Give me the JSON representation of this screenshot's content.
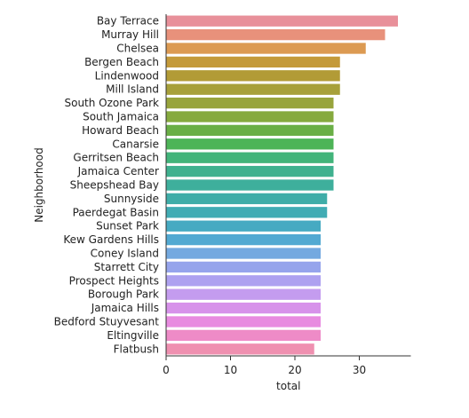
{
  "chart_data": {
    "type": "bar",
    "orientation": "horizontal",
    "xlabel": "total",
    "ylabel": "Neighborhood",
    "xlim": [
      0,
      38
    ],
    "xticks": [
      0,
      10,
      20,
      30
    ],
    "grid": false,
    "legend": "none",
    "categories": [
      "Bay Terrace",
      "Murray Hill",
      "Chelsea",
      "Bergen Beach",
      "Lindenwood",
      "Mill Island",
      "South Ozone Park",
      "South Jamaica",
      "Howard Beach",
      "Canarsie",
      "Gerritsen Beach",
      "Jamaica Center",
      "Sheepshead Bay",
      "Sunnyside",
      "Paerdegat Basin",
      "Sunset Park",
      "Kew Gardens Hills",
      "Coney Island",
      "Starrett City",
      "Prospect Heights",
      "Borough Park",
      "Jamaica Hills",
      "Bedford Stuyvesant",
      "Eltingville",
      "Flatbush"
    ],
    "values": [
      36,
      34,
      31,
      27,
      27,
      27,
      26,
      26,
      26,
      26,
      26,
      26,
      26,
      25,
      25,
      24,
      24,
      24,
      24,
      24,
      24,
      24,
      24,
      24,
      23
    ],
    "colors": [
      "#e8909a",
      "#e8917b",
      "#dc9a52",
      "#c49a3a",
      "#b29b36",
      "#a7a03a",
      "#98a43c",
      "#86aa3e",
      "#6aaf46",
      "#4db457",
      "#42b47a",
      "#3fb18f",
      "#3eaf9c",
      "#3fada8",
      "#41acb4",
      "#46aac2",
      "#52a9d2",
      "#74a9e0",
      "#96a4ec",
      "#aea1f0",
      "#c49cef",
      "#d792ea",
      "#e88be0",
      "#ee8bc7",
      "#ef90b0"
    ]
  }
}
